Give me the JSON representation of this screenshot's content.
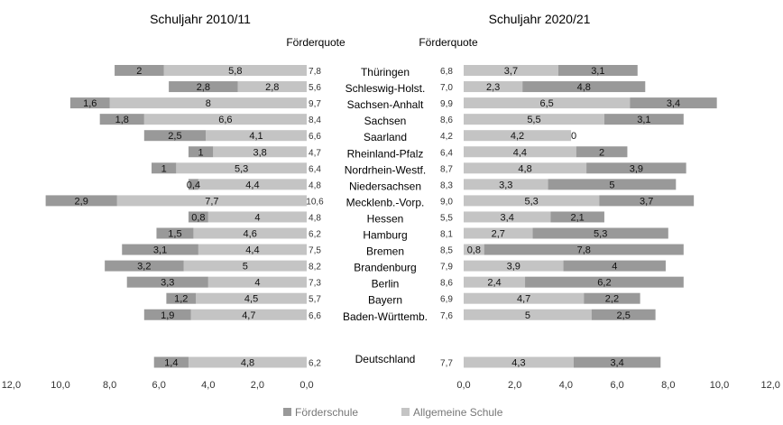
{
  "chart_data": {
    "type": "bar",
    "orientation": "horizontal",
    "stacked": true,
    "legend": [
      "Förderschule",
      "Allgemeine Schule"
    ],
    "legend_position": "bottom",
    "categories": [
      "Thüringen",
      "Schleswig-Holst.",
      "Sachsen-Anhalt",
      "Sachsen",
      "Saarland",
      "Rheinland-Pfalz",
      "Nordrhein-Westf.",
      "Niedersachsen",
      "Mecklenb.-Vorp.",
      "Hessen",
      "Hamburg",
      "Bremen",
      "Brandenburg",
      "Berlin",
      "Bayern",
      "Baden-Württemb.",
      "Deutschland"
    ],
    "colors": {
      "foerderschule": "#999999",
      "allgemeine": "#c4c4c4"
    },
    "panels": [
      {
        "title": "Schuljahr 2010/11",
        "quota_header": "Förderquote",
        "reversed": true,
        "xlim": [
          0,
          12
        ],
        "ticks": [
          "12,0",
          "10,0",
          "8,0",
          "6,0",
          "4,0",
          "2,0",
          "0,0"
        ],
        "tick_values": [
          12,
          10,
          8,
          6,
          4,
          2,
          0
        ],
        "foerderschule": [
          2,
          2.8,
          1.6,
          1.8,
          2.5,
          1,
          1,
          0.4,
          2.9,
          0.8,
          1.5,
          3.1,
          3.2,
          3.3,
          1.2,
          1.9,
          1.4
        ],
        "allgemeine": [
          5.8,
          2.8,
          8,
          6.6,
          4.1,
          3.8,
          5.3,
          4.4,
          7.7,
          4,
          4.6,
          4.4,
          5,
          4,
          4.5,
          4.7,
          4.8
        ],
        "foerderschule_labels": [
          "2",
          "2,8",
          "1,6",
          "1,8",
          "2,5",
          "1",
          "1",
          "0,4",
          "2,9",
          "0,8",
          "1,5",
          "3,1",
          "3,2",
          "3,3",
          "1,2",
          "1,9",
          "1,4"
        ],
        "allgemeine_labels": [
          "5,8",
          "2,8",
          "8",
          "6,6",
          "4,1",
          "3,8",
          "5,3",
          "4,4",
          "7,7",
          "4",
          "4,6",
          "4,4",
          "5",
          "4",
          "4,5",
          "4,7",
          "4,8"
        ],
        "quotas": [
          "7,8",
          "5,6",
          "9,7",
          "8,4",
          "6,6",
          "4,7",
          "6,4",
          "4,8",
          "10,6",
          "4,8",
          "6,2",
          "7,5",
          "8,2",
          "7,3",
          "5,7",
          "6,6",
          "6,2"
        ]
      },
      {
        "title": "Schuljahr 2020/21",
        "quota_header": "Förderquote",
        "reversed": false,
        "xlim": [
          0,
          12
        ],
        "ticks": [
          "0,0",
          "2,0",
          "4,0",
          "6,0",
          "8,0",
          "10,0",
          "12,0"
        ],
        "tick_values": [
          0,
          2,
          4,
          6,
          8,
          10,
          12
        ],
        "allgemeine": [
          3.7,
          2.3,
          6.5,
          5.5,
          4.2,
          4.4,
          4.8,
          3.3,
          5.3,
          3.4,
          2.7,
          0.8,
          3.9,
          2.4,
          4.7,
          5,
          4.3
        ],
        "foerderschule": [
          3.1,
          4.8,
          3.4,
          3.1,
          0,
          2,
          3.9,
          5,
          3.7,
          2.1,
          5.3,
          7.8,
          4,
          6.2,
          2.2,
          2.5,
          3.4
        ],
        "allgemeine_labels": [
          "3,7",
          "2,3",
          "6,5",
          "5,5",
          "4,2",
          "4,4",
          "4,8",
          "3,3",
          "5,3",
          "3,4",
          "2,7",
          "0,8",
          "3,9",
          "2,4",
          "4,7",
          "5",
          "4,3"
        ],
        "foerderschule_labels": [
          "3,1",
          "4,8",
          "3,4",
          "3,1",
          "0",
          "2",
          "3,9",
          "5",
          "3,7",
          "2,1",
          "5,3",
          "7,8",
          "4",
          "6,2",
          "2,2",
          "2,5",
          "3,4"
        ],
        "quotas": [
          "6,8",
          "7,0",
          "9,9",
          "8,6",
          "4,2",
          "6,4",
          "8,7",
          "8,3",
          "9,0",
          "5,5",
          "8,1",
          "8,5",
          "7,9",
          "8,6",
          "6,9",
          "7,6",
          "7,7"
        ]
      }
    ]
  }
}
